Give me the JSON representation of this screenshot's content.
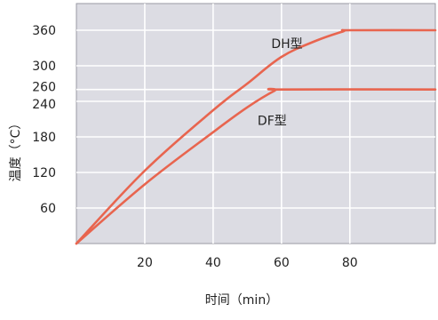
{
  "chart_data": {
    "type": "line",
    "xlabel": "时间（min）",
    "ylabel": "温度（°C）",
    "xlim": [
      0,
      105
    ],
    "ylim": [
      0,
      405
    ],
    "x_ticks": [
      20,
      40,
      60,
      80
    ],
    "y_ticks": [
      60,
      120,
      180,
      240,
      260,
      300,
      360
    ],
    "x_gridlines": [
      20,
      40,
      60,
      80
    ],
    "y_gridlines": [
      60,
      120,
      180,
      240,
      260,
      300,
      360
    ],
    "grid": true,
    "plot_background": "#dcdce3",
    "grid_color": "#ffffff",
    "line_color": "#e8654f",
    "series": [
      {
        "name": "DH型",
        "points": [
          [
            0,
            0
          ],
          [
            20,
            123
          ],
          [
            40,
            225
          ],
          [
            50,
            270
          ],
          [
            60,
            315
          ],
          [
            70,
            342
          ],
          [
            78,
            358
          ],
          [
            80,
            360
          ],
          [
            105,
            360
          ]
        ]
      },
      {
        "name": "DF型",
        "points": [
          [
            0,
            0
          ],
          [
            20,
            100
          ],
          [
            40,
            188
          ],
          [
            50,
            230
          ],
          [
            58,
            258
          ],
          [
            60,
            260
          ],
          [
            105,
            260
          ]
        ]
      }
    ],
    "annotations": [
      {
        "text": "DH型",
        "series": "DH型",
        "x": 57,
        "y": 330
      },
      {
        "text": "DF型",
        "series": "DF型",
        "x": 53,
        "y": 200
      }
    ]
  }
}
